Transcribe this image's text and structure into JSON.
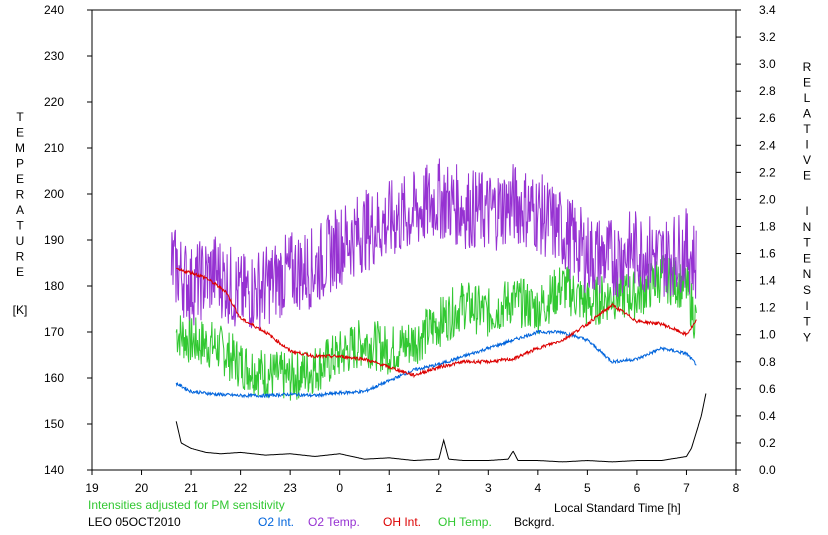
{
  "chart_data": {
    "type": "line",
    "xlabel": "Local Standard Time [h]",
    "x_ticks": [
      "19",
      "20",
      "21",
      "22",
      "23",
      "0",
      "1",
      "2",
      "3",
      "4",
      "5",
      "6",
      "7",
      "8"
    ],
    "x_range_hours": [
      19,
      32
    ],
    "ylabel_left_letters": [
      "T",
      "E",
      "M",
      "P",
      "E",
      "R",
      "A",
      "T",
      "U",
      "R",
      "E"
    ],
    "ylabel_left_unit": "[K]",
    "ylim_left": [
      140,
      240
    ],
    "y_ticks_left": [
      "140",
      "150",
      "160",
      "170",
      "180",
      "190",
      "200",
      "210",
      "220",
      "230",
      "240"
    ],
    "ylabel_right_word1": [
      "R",
      "E",
      "L",
      "A",
      "T",
      "I",
      "V",
      "E"
    ],
    "ylabel_right_word2": [
      "I",
      "N",
      "T",
      "E",
      "N",
      "S",
      "I",
      "T",
      "Y"
    ],
    "ylim_right": [
      0,
      3.4
    ],
    "y_ticks_right": [
      "0.0",
      "0.2",
      "0.4",
      "0.6",
      "0.8",
      "1.0",
      "1.2",
      "1.4",
      "1.6",
      "1.8",
      "2.0",
      "2.2",
      "2.4",
      "2.6",
      "2.8",
      "3.0",
      "3.2",
      "3.4"
    ],
    "note": "Intensities adjusted for PM sensitivity",
    "station": "LEO 05OCT2010",
    "series": [
      {
        "name": "O2 Int.",
        "axis": "right",
        "color": "#0064dc",
        "noise": 0.012,
        "x": [
          20.7,
          21.0,
          21.5,
          22.0,
          22.5,
          23.0,
          23.5,
          24.0,
          24.5,
          25.0,
          25.5,
          26.0,
          26.5,
          27.0,
          27.5,
          28.0,
          28.5,
          29.0,
          29.5,
          30.0,
          30.5,
          31.0,
          31.2
        ],
        "y": [
          0.64,
          0.58,
          0.56,
          0.55,
          0.55,
          0.56,
          0.55,
          0.57,
          0.58,
          0.66,
          0.74,
          0.78,
          0.84,
          0.9,
          0.96,
          1.02,
          1.02,
          0.96,
          0.8,
          0.82,
          0.9,
          0.86,
          0.78
        ]
      },
      {
        "name": "O2 Temp.",
        "axis": "left",
        "color": "#9632d2",
        "noise": 9,
        "x": [
          20.6,
          21.0,
          21.5,
          22.0,
          22.5,
          23.0,
          23.5,
          24.0,
          24.5,
          25.0,
          25.5,
          26.0,
          26.5,
          27.0,
          27.5,
          28.0,
          28.5,
          29.0,
          29.5,
          30.0,
          30.5,
          31.0,
          31.2
        ],
        "y": [
          185,
          180,
          183,
          178,
          180,
          183,
          184,
          189,
          192,
          194,
          196,
          199,
          197,
          196,
          198,
          196,
          192,
          187,
          186,
          188,
          186,
          188,
          185
        ]
      },
      {
        "name": "OH Int.",
        "axis": "right",
        "color": "#dc0000",
        "noise": 0.012,
        "x": [
          20.7,
          21.0,
          21.3,
          21.7,
          22.0,
          22.5,
          23.0,
          23.5,
          24.0,
          24.5,
          25.0,
          25.5,
          26.0,
          26.5,
          27.0,
          27.5,
          28.0,
          28.5,
          29.0,
          29.5,
          30.0,
          30.5,
          31.0,
          31.2
        ],
        "y": [
          1.48,
          1.46,
          1.42,
          1.32,
          1.12,
          1.02,
          0.88,
          0.84,
          0.84,
          0.82,
          0.76,
          0.7,
          0.76,
          0.8,
          0.8,
          0.82,
          0.9,
          0.96,
          1.08,
          1.22,
          1.1,
          1.08,
          1.0,
          1.1
        ]
      },
      {
        "name": "OH Temp.",
        "axis": "left",
        "color": "#32c832",
        "noise": 5.5,
        "x": [
          20.7,
          21.0,
          21.5,
          22.0,
          22.5,
          23.0,
          23.5,
          24.0,
          24.5,
          25.0,
          25.5,
          26.0,
          26.5,
          27.0,
          27.5,
          28.0,
          28.5,
          29.0,
          29.5,
          30.0,
          30.5,
          31.0,
          31.2
        ],
        "y": [
          170,
          168,
          167,
          163,
          161,
          160,
          162,
          165,
          168,
          166,
          168,
          172,
          176,
          174,
          177,
          175,
          180,
          176,
          178,
          178,
          182,
          180,
          172
        ]
      },
      {
        "name": "Bckgrd.",
        "axis": "right",
        "color": "#000000",
        "noise": 0.0,
        "x": [
          20.7,
          20.8,
          21.0,
          21.3,
          21.6,
          22.0,
          22.5,
          23.0,
          23.5,
          24.0,
          24.5,
          25.0,
          25.5,
          26.0,
          26.1,
          26.2,
          26.5,
          27.0,
          27.4,
          27.5,
          27.6,
          28.0,
          28.5,
          29.0,
          29.5,
          30.0,
          30.5,
          31.0,
          31.1,
          31.3,
          31.4
        ],
        "y": [
          0.36,
          0.2,
          0.16,
          0.13,
          0.12,
          0.13,
          0.11,
          0.12,
          0.1,
          0.12,
          0.08,
          0.09,
          0.07,
          0.08,
          0.22,
          0.08,
          0.07,
          0.07,
          0.08,
          0.14,
          0.07,
          0.07,
          0.06,
          0.07,
          0.06,
          0.07,
          0.07,
          0.1,
          0.16,
          0.4,
          0.58
        ]
      }
    ]
  }
}
